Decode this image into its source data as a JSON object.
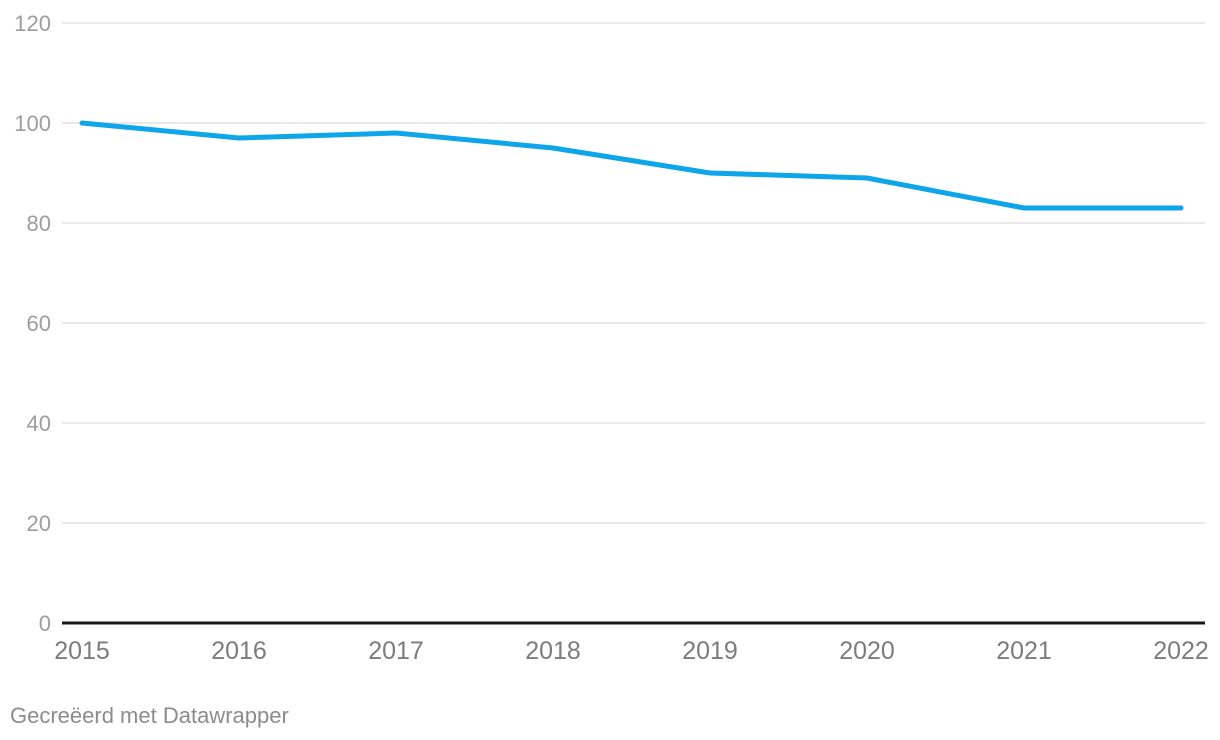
{
  "footer": {
    "credit": "Gecreëerd met Datawrapper"
  },
  "colors": {
    "line": "#0ea5e9",
    "grid": "#e9e9e9",
    "zero_axis": "#181818",
    "y_label": "#9d9d9d",
    "x_label": "#7c7c7c",
    "footer_text": "#8c8c8c",
    "background": "#ffffff"
  },
  "chart_data": {
    "type": "line",
    "categories": [
      "2015",
      "2016",
      "2017",
      "2018",
      "2019",
      "2020",
      "2021",
      "2022"
    ],
    "values": [
      100,
      97,
      98,
      95,
      90,
      89,
      83,
      83
    ],
    "title": "",
    "xlabel": "",
    "ylabel": "",
    "ylim": [
      0,
      120
    ],
    "yticks": [
      0,
      20,
      40,
      60,
      80,
      100,
      120
    ],
    "grid": true,
    "legend": false,
    "line_width": 5
  }
}
